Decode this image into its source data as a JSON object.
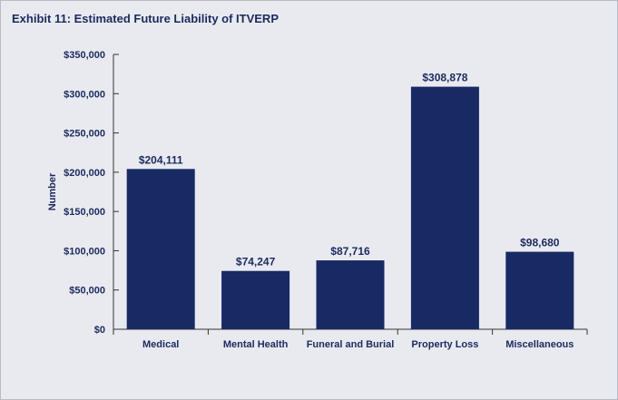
{
  "chart_data": {
    "type": "bar",
    "title": "Exhibit 11: Estimated Future Liability of ITVERP",
    "ylabel": "Number",
    "xlabel": "",
    "categories": [
      "Medical",
      "Mental Health",
      "Funeral and Burial",
      "Property Loss",
      "Miscellaneous"
    ],
    "values": [
      204111,
      74247,
      87716,
      308878,
      98680
    ],
    "value_labels": [
      "$204,111",
      "$74,247",
      "$87,716",
      "$308,878",
      "$98,680"
    ],
    "ylim": [
      0,
      350000
    ],
    "yticks": [
      0,
      50000,
      100000,
      150000,
      200000,
      250000,
      300000,
      350000
    ],
    "ytick_labels": [
      "$0",
      "$50,000",
      "$100,000",
      "$150,000",
      "$200,000",
      "$250,000",
      "$300,000",
      "$350,000"
    ],
    "grid": false,
    "colors": {
      "bar": "#182A63",
      "text": "#1B2A5E",
      "background": "#E9EAF0"
    }
  }
}
